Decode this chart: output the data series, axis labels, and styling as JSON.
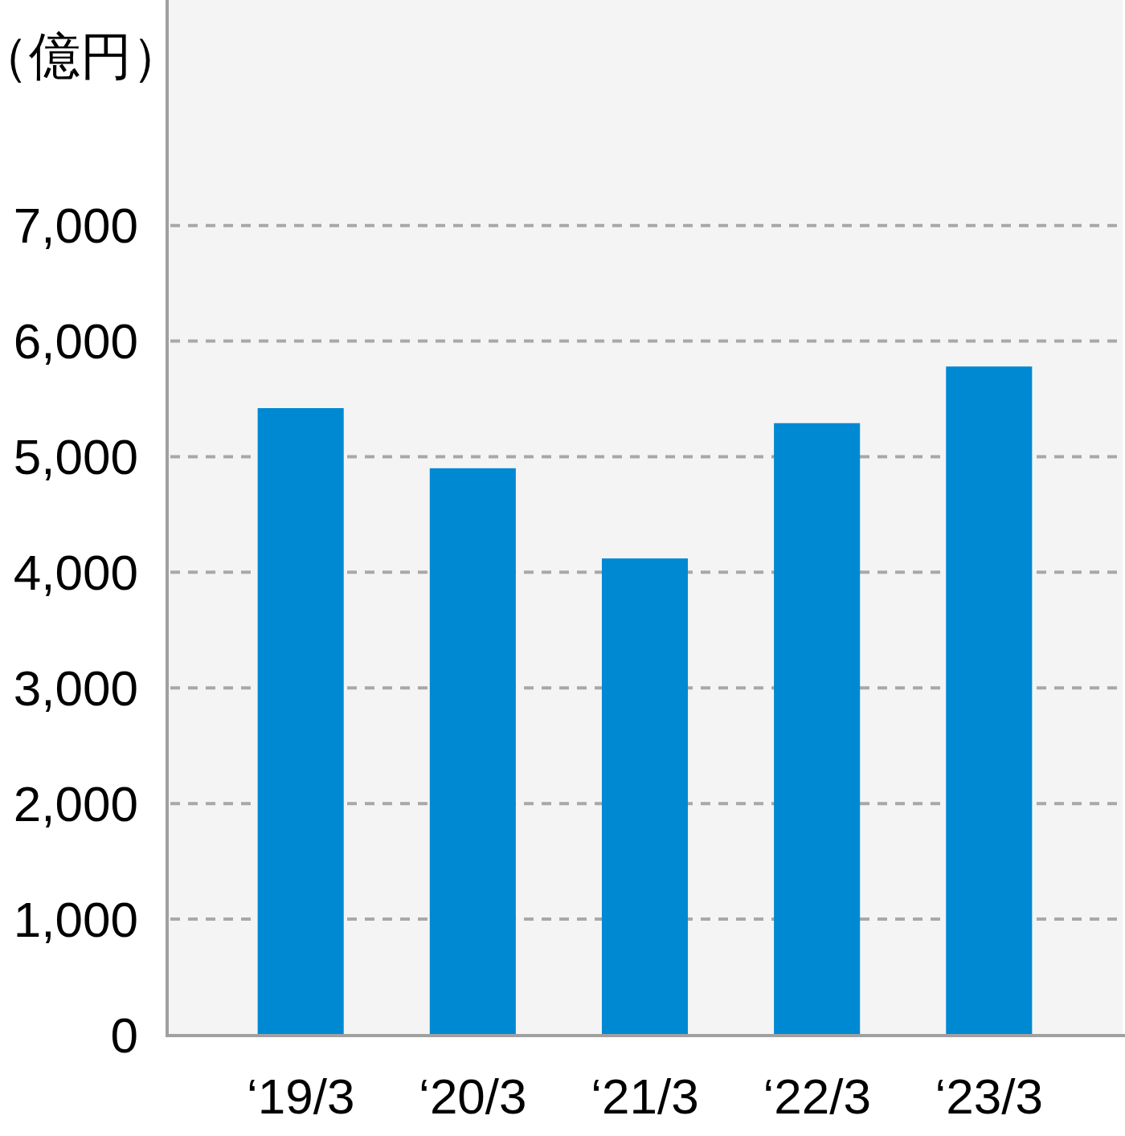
{
  "chart_data": {
    "type": "bar",
    "ylabel": "（億円）",
    "categories": [
      "‘19/3",
      "‘20/3",
      "‘21/3",
      "‘22/3",
      "‘23/3"
    ],
    "values": [
      5420,
      4900,
      4120,
      5290,
      5780
    ],
    "color": "#0089d3",
    "ylim": [
      0,
      8950
    ],
    "yticks": [
      0,
      {
        "value": 1000,
        "label": "1,000"
      },
      {
        "value": 2000,
        "label": "2,000"
      },
      {
        "value": 3000,
        "label": "3,000"
      },
      {
        "value": 4000,
        "label": "4,000"
      },
      {
        "value": 5000,
        "label": "5,000"
      },
      {
        "value": 6000,
        "label": "6,000"
      },
      {
        "value": 7000,
        "label": "7,000"
      }
    ],
    "grid": "y"
  }
}
